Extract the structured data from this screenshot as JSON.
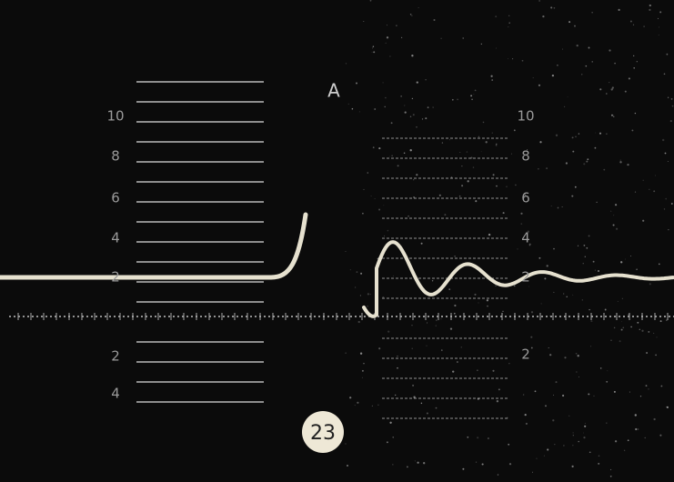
{
  "marker": "A",
  "scale_left": [
    "10",
    "8",
    "6",
    "4",
    "2",
    "2",
    "4"
  ],
  "scale_right": [
    "10",
    "8",
    "6",
    "4",
    "2",
    "2"
  ],
  "badge": "23"
}
